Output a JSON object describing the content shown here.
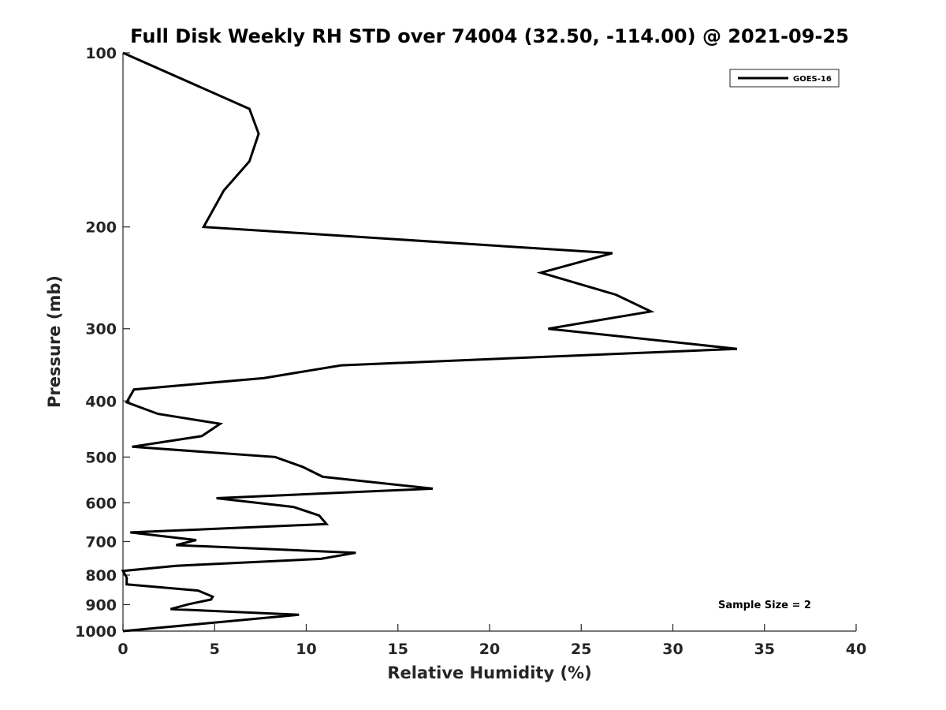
{
  "chart_data": {
    "type": "line",
    "title": "Full Disk Weekly RH STD over 74004 (32.50, -114.00) @ 2021-09-25",
    "xlabel": "Relative Humidity (%)",
    "ylabel": "Pressure (mb)",
    "xlim": [
      0,
      40
    ],
    "ylim": [
      100,
      1000
    ],
    "y_scale": "log",
    "y_direction": "reversed",
    "x_ticks": [
      "0",
      "5",
      "10",
      "15",
      "20",
      "25",
      "30",
      "35",
      "40"
    ],
    "y_ticks": [
      "100",
      "200",
      "300",
      "400",
      "500",
      "600",
      "700",
      "800",
      "900",
      "1000"
    ],
    "grid": false,
    "legend_position": "top-right",
    "annotation": "Sample Size = 2",
    "series_color": "#000000",
    "series": [
      {
        "name": "GOES-16",
        "x": [
          0.0,
          6.9,
          7.4,
          6.9,
          5.5,
          4.4,
          26.7,
          22.8,
          26.9,
          28.8,
          23.2,
          33.5,
          11.9,
          7.7,
          0.6,
          0.2,
          1.9,
          5.3,
          4.3,
          0.5,
          8.3,
          9.8,
          10.9,
          16.9,
          5.1,
          9.3,
          10.7,
          11.1,
          0.4,
          4.0,
          2.9,
          12.7,
          10.8,
          2.9,
          0.0,
          0.2,
          0.2,
          4.1,
          4.9,
          4.8,
          3.6,
          2.6,
          9.6,
          0.0
        ],
        "y": [
          100,
          125,
          138,
          154,
          173,
          200,
          222,
          240,
          262,
          280,
          300,
          325,
          347,
          365,
          382,
          402,
          421,
          438,
          460,
          480,
          500,
          520,
          541,
          567,
          589,
          610,
          631,
          653,
          675,
          696,
          710,
          732,
          750,
          771,
          787,
          808,
          830,
          851,
          872,
          882,
          898,
          916,
          937,
          1000
        ]
      }
    ]
  }
}
